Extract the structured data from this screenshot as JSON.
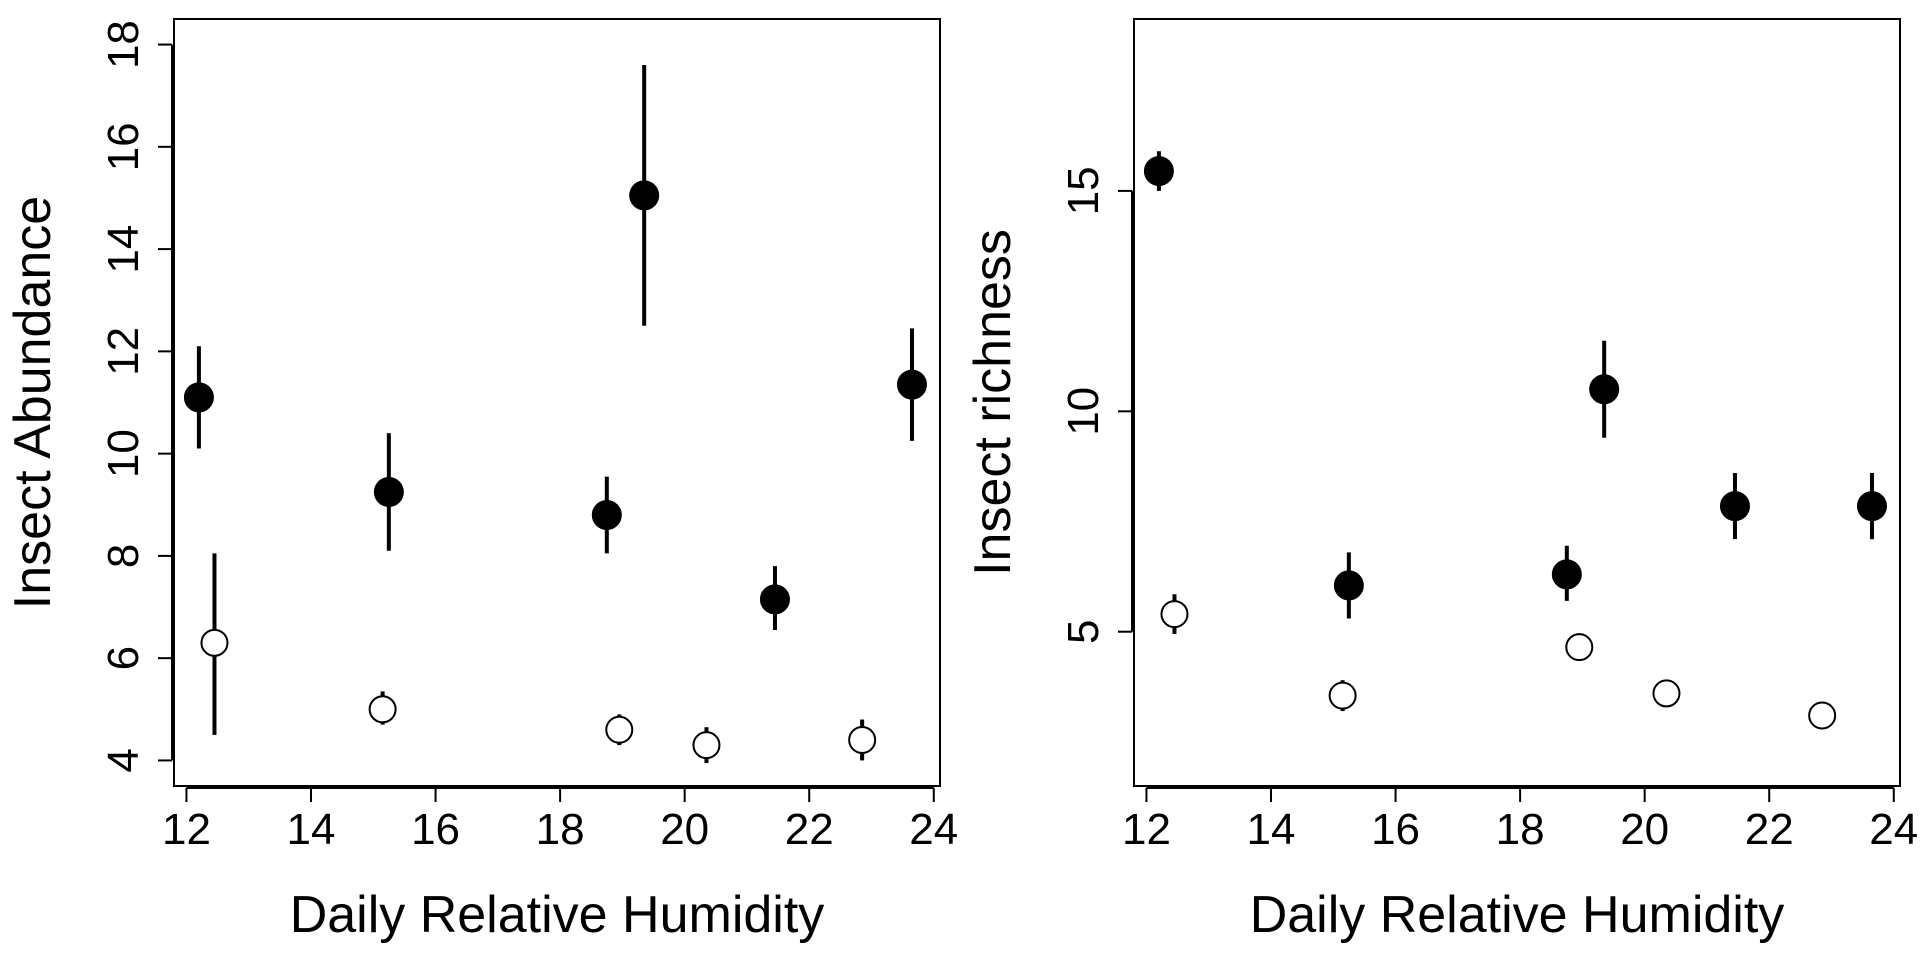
{
  "chart_data": [
    {
      "type": "scatter",
      "xlabel": "Daily Relative Humidity",
      "ylabel": "Insect Abundance",
      "xlim": [
        11.8,
        24.1
      ],
      "ylim": [
        3.5,
        18.5
      ],
      "xticks": [
        12,
        14,
        16,
        18,
        20,
        22,
        24
      ],
      "yticks": [
        4,
        6,
        8,
        10,
        12,
        14,
        16,
        18
      ],
      "grid": false,
      "legend": "none",
      "series": [
        {
          "marker": "filled-circle",
          "color": "#000000",
          "points": [
            {
              "x": 12.2,
              "y": 11.1,
              "lo": 10.1,
              "hi": 12.1
            },
            {
              "x": 15.25,
              "y": 9.25,
              "lo": 8.1,
              "hi": 10.4
            },
            {
              "x": 18.75,
              "y": 8.8,
              "lo": 8.05,
              "hi": 9.55
            },
            {
              "x": 19.35,
              "y": 15.05,
              "lo": 12.5,
              "hi": 17.6
            },
            {
              "x": 21.45,
              "y": 7.15,
              "lo": 6.55,
              "hi": 7.8
            },
            {
              "x": 23.65,
              "y": 11.35,
              "lo": 10.25,
              "hi": 12.45
            }
          ]
        },
        {
          "marker": "open-circle",
          "color": "#000000",
          "points": [
            {
              "x": 12.45,
              "y": 6.3,
              "lo": 4.5,
              "hi": 8.05
            },
            {
              "x": 15.15,
              "y": 5.0,
              "lo": 4.7,
              "hi": 5.35
            },
            {
              "x": 18.95,
              "y": 4.6,
              "lo": 4.3,
              "hi": 4.9
            },
            {
              "x": 20.35,
              "y": 4.3,
              "lo": 3.95,
              "hi": 4.65
            },
            {
              "x": 22.85,
              "y": 4.4,
              "lo": 4.0,
              "hi": 4.8
            }
          ]
        }
      ]
    },
    {
      "type": "scatter",
      "xlabel": "Daily Relative Humidity",
      "ylabel": "Insect richness",
      "xlim": [
        11.8,
        24.1
      ],
      "ylim": [
        1.5,
        18.9
      ],
      "xticks": [
        12,
        14,
        16,
        18,
        20,
        22,
        24
      ],
      "yticks": [
        5,
        10,
        15
      ],
      "grid": false,
      "legend": "none",
      "series": [
        {
          "marker": "filled-circle",
          "color": "#000000",
          "points": [
            {
              "x": 12.2,
              "y": 15.45,
              "lo": 15.0,
              "hi": 15.9
            },
            {
              "x": 15.25,
              "y": 6.05,
              "lo": 5.3,
              "hi": 6.8
            },
            {
              "x": 18.75,
              "y": 6.3,
              "lo": 5.7,
              "hi": 6.95
            },
            {
              "x": 19.35,
              "y": 10.5,
              "lo": 9.4,
              "hi": 11.6
            },
            {
              "x": 21.45,
              "y": 7.85,
              "lo": 7.1,
              "hi": 8.6
            },
            {
              "x": 23.65,
              "y": 7.85,
              "lo": 7.1,
              "hi": 8.6
            }
          ]
        },
        {
          "marker": "open-circle",
          "color": "#000000",
          "points": [
            {
              "x": 12.45,
              "y": 5.4,
              "lo": 4.95,
              "hi": 5.85
            },
            {
              "x": 15.15,
              "y": 3.55,
              "lo": 3.2,
              "hi": 3.9
            },
            {
              "x": 18.95,
              "y": 4.65,
              "lo": 4.65,
              "hi": 4.65
            },
            {
              "x": 20.35,
              "y": 3.6,
              "lo": 3.6,
              "hi": 3.6
            },
            {
              "x": 22.85,
              "y": 3.1,
              "lo": 3.1,
              "hi": 3.1
            }
          ]
        }
      ]
    }
  ]
}
